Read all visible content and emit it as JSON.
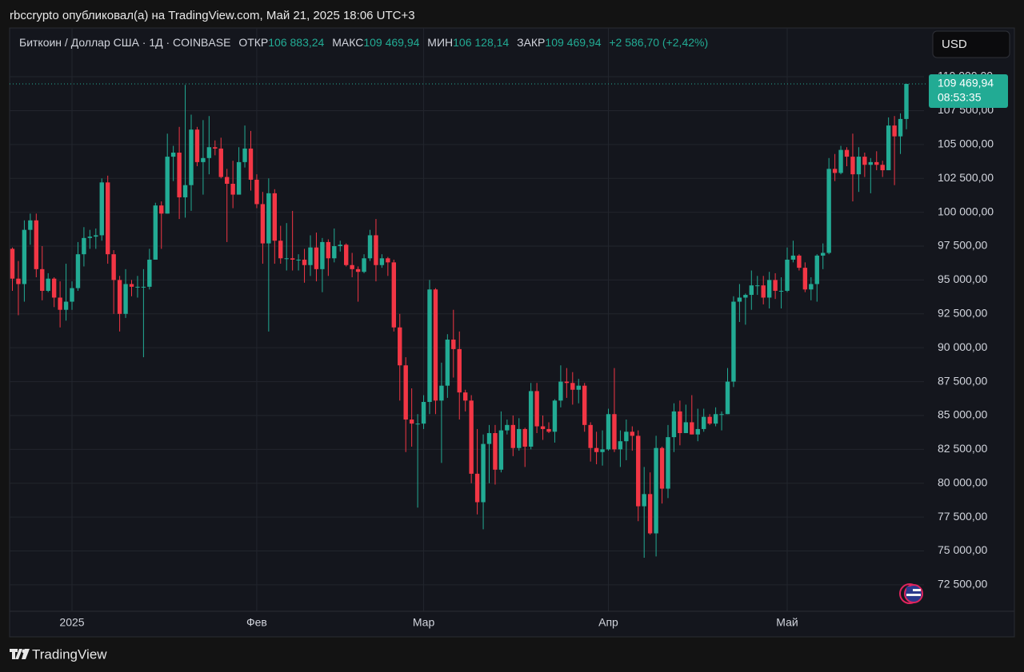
{
  "caption": "rbccrypto опубликовал(а) на TradingView.com, Май 21, 2025 18:06 UTC+3",
  "brand": "TradingView",
  "currency": "USD",
  "chart_data": {
    "type": "candlestick",
    "header": {
      "symbol": "Биткоин / Доллар США · 1Д · COINBASE",
      "open_label": "ОТКР",
      "open": "106 883,24",
      "high_label": "МАКС",
      "high": "109 469,94",
      "low_label": "МИН",
      "low": "106 128,14",
      "close_label": "ЗАКР",
      "close": "109 469,94",
      "change": "+2 586,70 (+2,42%)"
    },
    "last_price": "109 469,94",
    "countdown": "08:53:35",
    "up_color": "#22ab94",
    "down_color": "#f23645",
    "categories": [
      null,
      null,
      null,
      null,
      null,
      null,
      null,
      null,
      null,
      null,
      "2025",
      null,
      null,
      null,
      null,
      null,
      null,
      null,
      null,
      null,
      null,
      null,
      null,
      null,
      null,
      null,
      null,
      null,
      null,
      null,
      null,
      null,
      null,
      null,
      null,
      null,
      null,
      null,
      null,
      null,
      null,
      "Фев",
      null,
      null,
      null,
      null,
      null,
      null,
      null,
      null,
      null,
      null,
      null,
      null,
      null,
      null,
      null,
      null,
      null,
      null,
      null,
      null,
      null,
      null,
      null,
      null,
      null,
      null,
      null,
      "Мар",
      null,
      null,
      null,
      null,
      null,
      null,
      null,
      null,
      null,
      null,
      null,
      null,
      null,
      null,
      null,
      null,
      null,
      null,
      null,
      null,
      null,
      null,
      null,
      null,
      null,
      null,
      null,
      null,
      null,
      null,
      "Апр",
      null,
      null,
      null,
      null,
      null,
      null,
      null,
      null,
      null,
      null,
      null,
      null,
      null,
      null,
      null,
      null,
      null,
      null,
      null,
      null,
      null,
      null,
      null,
      null,
      null,
      null,
      null,
      null,
      null,
      "Май",
      null,
      null,
      null,
      null,
      null,
      null,
      null,
      null,
      null,
      null,
      null,
      null,
      null,
      null,
      null,
      null,
      null,
      null,
      null,
      null
    ],
    "open": [
      97300,
      95100,
      94700,
      98700,
      99400,
      95800,
      94200,
      95100,
      93700,
      92800,
      93400,
      94400,
      96900,
      98100,
      98200,
      98300,
      102200,
      96900,
      95000,
      92500,
      94700,
      94500,
      94500,
      94500,
      96500,
      100500,
      99900,
      104100,
      104400,
      101100,
      102000,
      106100,
      103700,
      104000,
      104800,
      104700,
      102600,
      102100,
      101300,
      103700,
      104700,
      102400,
      100600,
      97700,
      101400,
      97900,
      96600,
      96600,
      96500,
      96500,
      96100,
      97400,
      95800,
      97800,
      96600,
      97500,
      97600,
      96100,
      95800,
      95600,
      96600,
      98300,
      96100,
      96600,
      96300,
      91500,
      88700,
      84700,
      84400,
      84400,
      86000,
      94300,
      86100,
      87200,
      90600,
      89900,
      86700,
      86100,
      80700,
      78600,
      82900,
      83700,
      81000,
      83900,
      84300,
      82600,
      84000,
      82700,
      86800,
      84200,
      84000,
      83800,
      86100,
      87500,
      87400,
      86900,
      87200,
      84300,
      82600,
      82300,
      82500,
      85100,
      82500,
      83100,
      83800,
      83500,
      78300,
      79200,
      76300,
      82600,
      79600,
      83400,
      85300,
      83700,
      84500,
      83600,
      84000,
      84900,
      84400,
      85100,
      85100,
      87500,
      93400,
      93700,
      93900,
      94600,
      94600,
      93700,
      95000,
      94200,
      94200,
      96500,
      96800,
      95900,
      94300,
      94700,
      96800,
      97000,
      103200,
      102900,
      104600,
      104100,
      102800,
      104100,
      103500,
      103700,
      103500,
      103100,
      106400,
      105600,
      106883.24
    ],
    "high": [
      97400,
      96400,
      99400,
      99900,
      99900,
      97500,
      95500,
      95200,
      94900,
      96200,
      94900,
      97800,
      98900,
      98700,
      98800,
      102500,
      102700,
      97200,
      95300,
      95800,
      95000,
      95300,
      95800,
      97300,
      100700,
      100800,
      105800,
      104900,
      106300,
      109400,
      107200,
      106300,
      106800,
      107100,
      105300,
      105500,
      103200,
      103800,
      104800,
      106400,
      106000,
      102800,
      101500,
      102500,
      101700,
      99000,
      99200,
      100100,
      96900,
      97300,
      98300,
      98500,
      98100,
      98000,
      98800,
      97900,
      97700,
      97000,
      96000,
      96900,
      98700,
      99500,
      96900,
      96700,
      96500,
      92500,
      89300,
      87000,
      85100,
      86500,
      95000,
      94400,
      88900,
      91000,
      92800,
      91200,
      86900,
      86500,
      84000,
      83600,
      84300,
      84300,
      85300,
      84700,
      85000,
      84800,
      84100,
      87400,
      87400,
      85000,
      84500,
      86200,
      88700,
      88500,
      88200,
      87700,
      87400,
      84500,
      83800,
      83900,
      85500,
      88500,
      83900,
      84700,
      84200,
      83900,
      81200,
      80800,
      83500,
      82700,
      84300,
      85900,
      86100,
      85800,
      86500,
      85500,
      85500,
      85100,
      85600,
      85300,
      88500,
      93800,
      94700,
      94000,
      95700,
      95300,
      95300,
      95600,
      95500,
      95200,
      97400,
      97900,
      96900,
      96300,
      95200,
      96900,
      97700,
      104000,
      104300,
      104900,
      104800,
      105800,
      104800,
      104400,
      104000,
      104500,
      103800,
      107000,
      107100,
      107300,
      109469.94
    ],
    "low": [
      94200,
      92400,
      93400,
      97600,
      95200,
      93500,
      94100,
      93000,
      91500,
      92000,
      92800,
      94200,
      96000,
      97300,
      97300,
      97900,
      96200,
      92500,
      91200,
      92200,
      93800,
      93700,
      89300,
      94300,
      96500,
      97300,
      99900,
      102300,
      99500,
      99600,
      100100,
      103400,
      101300,
      102800,
      104200,
      102500,
      97800,
      100300,
      101300,
      103300,
      101600,
      100300,
      96200,
      91200,
      96200,
      96200,
      95700,
      95700,
      95700,
      94800,
      95300,
      94900,
      94100,
      95300,
      96300,
      97100,
      96000,
      95200,
      93400,
      95500,
      96400,
      94900,
      95900,
      95300,
      91200,
      86100,
      82300,
      82700,
      78200,
      84000,
      85100,
      85100,
      81500,
      86300,
      87800,
      84700,
      85300,
      80000,
      77700,
      76600,
      80000,
      79900,
      80800,
      83600,
      82000,
      82400,
      81200,
      82500,
      83700,
      83200,
      83700,
      83000,
      85600,
      86300,
      85800,
      85900,
      83800,
      81600,
      81400,
      81300,
      82400,
      82300,
      81200,
      81700,
      82400,
      77200,
      74500,
      76200,
      74600,
      78500,
      78900,
      82300,
      82800,
      83700,
      83600,
      83100,
      83800,
      84300,
      84200,
      83900,
      85100,
      87100,
      91900,
      91700,
      92800,
      93900,
      93200,
      92900,
      93600,
      92900,
      94100,
      96300,
      95700,
      94100,
      93500,
      93400,
      95800,
      96900,
      102300,
      102800,
      103400,
      100800,
      101500,
      102600,
      101400,
      103100,
      102600,
      103100,
      102000,
      104300,
      106128.14
    ],
    "close": [
      95100,
      94700,
      98700,
      99400,
      95800,
      94200,
      95100,
      93700,
      92800,
      93400,
      94400,
      96900,
      98100,
      98200,
      98300,
      102200,
      96900,
      95000,
      92500,
      94700,
      94500,
      94500,
      94500,
      96500,
      100500,
      99900,
      104100,
      104400,
      101100,
      102000,
      106100,
      103700,
      104000,
      104800,
      104700,
      102600,
      102100,
      101300,
      103700,
      104700,
      102400,
      100600,
      97700,
      101400,
      97900,
      96600,
      96600,
      96500,
      96500,
      96100,
      97400,
      95800,
      97800,
      96600,
      97500,
      97600,
      96100,
      95800,
      95600,
      96600,
      98300,
      96100,
      96600,
      96300,
      91500,
      88700,
      84700,
      84400,
      84400,
      86000,
      94300,
      86100,
      87200,
      90600,
      89900,
      86700,
      86100,
      80700,
      78600,
      82900,
      83700,
      81000,
      83900,
      84300,
      82600,
      84000,
      82700,
      86800,
      84200,
      84000,
      83800,
      86100,
      87500,
      87400,
      86900,
      87200,
      84300,
      82600,
      82300,
      82500,
      85100,
      82500,
      83100,
      83800,
      83500,
      78300,
      79200,
      76300,
      82600,
      79600,
      83400,
      85300,
      83700,
      84500,
      83600,
      84000,
      84900,
      84400,
      85100,
      85100,
      87500,
      93400,
      93700,
      93900,
      94600,
      94600,
      93700,
      95000,
      94200,
      94200,
      96500,
      96800,
      95900,
      94300,
      94700,
      96800,
      97000,
      103200,
      102900,
      104600,
      104100,
      102800,
      104100,
      103500,
      103700,
      103500,
      103100,
      106400,
      105600,
      106883.24,
      109469.94
    ],
    "ylim": [
      70550,
      113600
    ],
    "yticks": [
      {
        "value": 72500,
        "label": "72 500,00"
      },
      {
        "value": 75000,
        "label": "75 000,00"
      },
      {
        "value": 77500,
        "label": "77 500,00"
      },
      {
        "value": 80000,
        "label": "80 000,00"
      },
      {
        "value": 82500,
        "label": "82 500,00"
      },
      {
        "value": 85000,
        "label": "85 000,00"
      },
      {
        "value": 87500,
        "label": "87 500,00"
      },
      {
        "value": 90000,
        "label": "90 000,00"
      },
      {
        "value": 92500,
        "label": "92 500,00"
      },
      {
        "value": 95000,
        "label": "95 000,00"
      },
      {
        "value": 97500,
        "label": "97 500,00"
      },
      {
        "value": 100000,
        "label": "100 000,00"
      },
      {
        "value": 102500,
        "label": "102 500,00"
      },
      {
        "value": 105000,
        "label": "105 000,00"
      },
      {
        "value": 107500,
        "label": "107 500,00"
      },
      {
        "value": 110000,
        "label": "110 000,00"
      }
    ],
    "grid": true
  }
}
